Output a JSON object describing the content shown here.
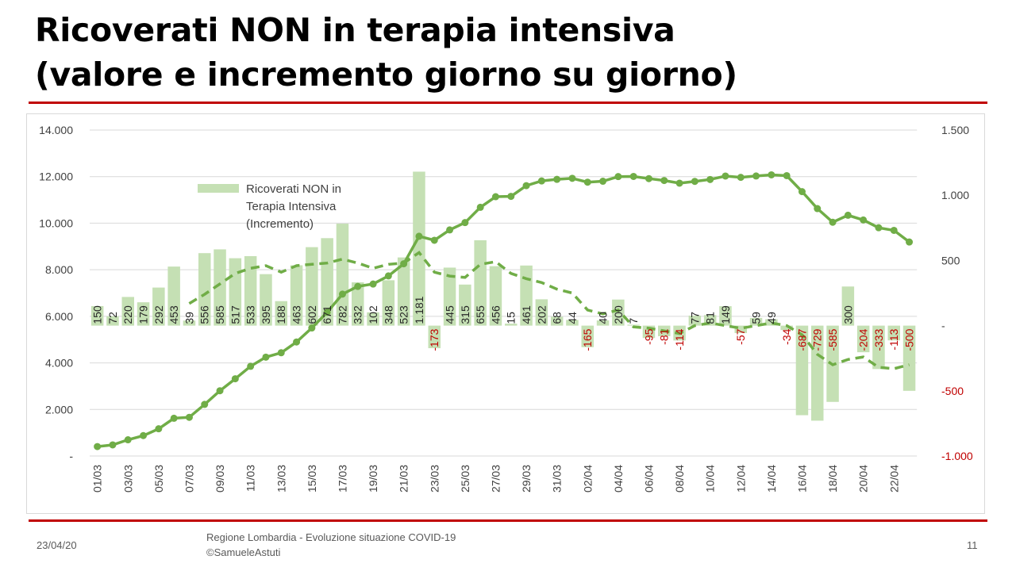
{
  "slide": {
    "title_line1": "Ricoverati NON in terapia intensiva",
    "title_line2": "(valore e incremento giorno su giorno)",
    "date": "23/04/20",
    "source_line1": "Regione Lombardia - Evoluzione situazione COVID-19",
    "source_line2": "©SamueleAstuti",
    "page_number": "11"
  },
  "colors": {
    "bar": "#c5e0b4",
    "line": "#70ad47",
    "negative_label": "#c00000",
    "rule": "#c00000",
    "grid": "#d9d9d9"
  },
  "chart_data": {
    "type": "bar",
    "legend": {
      "position": "top-left",
      "label_lines": [
        "Ricoverati NON in",
        "Terapia Intensiva",
        "(Incremento)"
      ]
    },
    "grid": true,
    "left_axis": {
      "ylim": [
        0,
        14000
      ],
      "ticks": [
        0,
        2000,
        4000,
        6000,
        8000,
        10000,
        12000,
        14000
      ],
      "tick_labels": [
        "-",
        "2.000",
        "4.000",
        "6.000",
        "8.000",
        "10.000",
        "12.000",
        "14.000"
      ]
    },
    "right_axis": {
      "ylim": [
        -1000,
        1500
      ],
      "ticks": [
        -1000,
        -500,
        0,
        500,
        1000,
        1500
      ],
      "tick_labels": [
        "-1.000",
        "-500",
        "-",
        "500",
        "1.000",
        "1.500"
      ]
    },
    "x_tick_labels": [
      "01/03",
      "03/03",
      "05/03",
      "07/03",
      "09/03",
      "11/03",
      "13/03",
      "15/03",
      "17/03",
      "19/03",
      "21/03",
      "23/03",
      "25/03",
      "27/03",
      "29/03",
      "31/03",
      "02/04",
      "04/04",
      "06/04",
      "08/04",
      "10/04",
      "12/04",
      "14/04",
      "16/04",
      "18/04",
      "20/04",
      "22/04"
    ],
    "categories": [
      "01/03",
      "02/03",
      "03/03",
      "04/03",
      "05/03",
      "06/03",
      "07/03",
      "08/03",
      "09/03",
      "10/03",
      "11/03",
      "12/03",
      "13/03",
      "14/03",
      "15/03",
      "16/03",
      "17/03",
      "18/03",
      "19/03",
      "20/03",
      "21/03",
      "22/03",
      "23/03",
      "24/03",
      "25/03",
      "26/03",
      "27/03",
      "28/03",
      "29/03",
      "30/03",
      "31/03",
      "01/04",
      "02/04",
      "03/04",
      "04/04",
      "05/04",
      "06/04",
      "07/04",
      "08/04",
      "09/04",
      "10/04",
      "11/04",
      "12/04",
      "13/04",
      "14/04",
      "15/04",
      "16/04",
      "17/04",
      "18/04",
      "19/04",
      "20/04",
      "21/04",
      "22/04",
      "23/04"
    ],
    "series": [
      {
        "name": "Ricoverati NON in Terapia Intensiva (Incremento)",
        "type": "bar",
        "axis": "right",
        "values": [
          150,
          72,
          220,
          179,
          292,
          453,
          39,
          556,
          585,
          517,
          533,
          395,
          188,
          463,
          602,
          671,
          782,
          332,
          102,
          348,
          523,
          1181,
          -173,
          445,
          315,
          655,
          456,
          15,
          461,
          202,
          68,
          44,
          -165,
          40,
          200,
          7,
          -95,
          -81,
          -114,
          77,
          81,
          149,
          -57,
          59,
          49,
          -34,
          -687,
          -729,
          -585,
          300,
          -204,
          -333,
          -113,
          -500
        ],
        "data_labels": [
          "150",
          "72",
          "220",
          "179",
          "292",
          "453",
          "39",
          "556",
          "585",
          "517",
          "533",
          "395",
          "188",
          "463",
          "602",
          "671",
          "782",
          "332",
          "102",
          "348",
          "523",
          "1.181",
          "-173",
          "445",
          "315",
          "655",
          "456",
          "15",
          "461",
          "202",
          "68",
          "44",
          "-165",
          "40",
          "200",
          "7",
          "-95",
          "-81",
          "-114",
          "77",
          "81",
          "149",
          "-57",
          "59",
          "49",
          "-34",
          "-687",
          "-729",
          "-585",
          "300",
          "-204",
          "-333",
          "-113",
          "-500"
        ]
      },
      {
        "type": "line",
        "axis": "left",
        "values": [
          406,
          478,
          698,
          877,
          1169,
          1622,
          1661,
          2217,
          2802,
          3319,
          3852,
          4247,
          4435,
          4898,
          5500,
          6171,
          6953,
          7285,
          7387,
          7735,
          8258,
          9439,
          9266,
          9711,
          10026,
          10681,
          11137,
          11152,
          11613,
          11815,
          11883,
          11927,
          11762,
          11802,
          12002,
          12009,
          11914,
          11833,
          11719,
          11796,
          11877,
          12026,
          11969,
          12028,
          12077,
          12043,
          11356,
          10627,
          10042,
          10342,
          10138,
          9805,
          9692,
          9192
        ]
      },
      {
        "type": "line",
        "style": "dashed",
        "axis": "right",
        "values": [
          null,
          null,
          null,
          null,
          null,
          null,
          170,
          240,
          320,
          400,
          440,
          460,
          410,
          460,
          470,
          480,
          510,
          480,
          440,
          470,
          480,
          560,
          410,
          380,
          370,
          470,
          490,
          400,
          360,
          330,
          280,
          250,
          120,
          90,
          120,
          -10,
          -20,
          -40,
          -60,
          0,
          20,
          0,
          -20,
          0,
          20,
          0,
          -70,
          -220,
          -300,
          -260,
          -240,
          -320,
          -330,
          -300
        ]
      }
    ]
  }
}
